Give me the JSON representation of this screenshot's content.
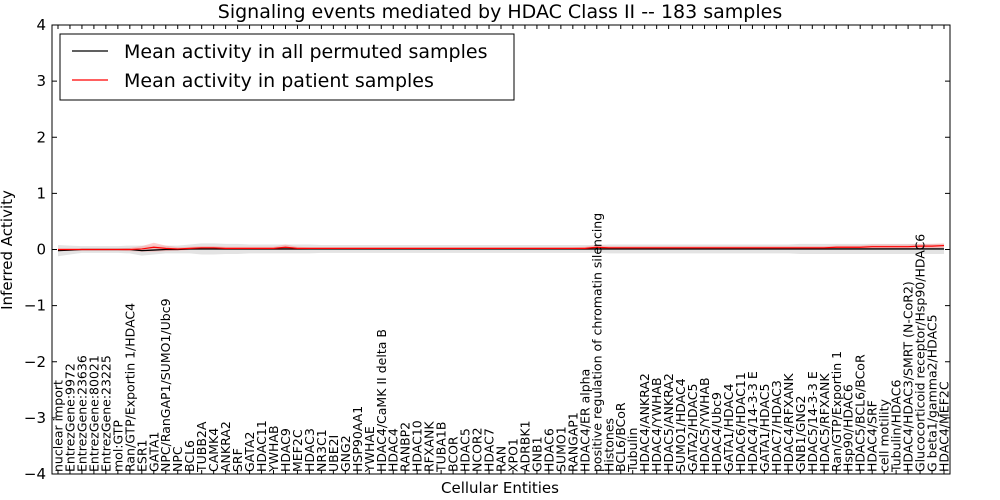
{
  "chart_data": {
    "type": "line",
    "title": "Signaling events mediated by HDAC Class II -- 183 samples",
    "xlabel": "Cellular Entities",
    "ylabel": "Inferred Activity",
    "ylim": [
      -4,
      4
    ],
    "yticks": [
      "−4",
      "−3",
      "−2",
      "−1",
      "0",
      "1",
      "2",
      "3",
      "4"
    ],
    "legend": {
      "position": "top-left",
      "entries": [
        {
          "label": "Mean activity in all permuted samples",
          "color": "#000000"
        },
        {
          "label": "Mean activity in patient samples",
          "color": "#ff0000"
        }
      ]
    },
    "categories": [
      "nuclear import",
      "EntrezGene:9972",
      "EntrezGene:23636",
      "EntrezGene:80021",
      "EntrezGene:23225",
      "mol:GTP",
      "Ran/GTP/Exportin 1/HDAC4",
      "ESR1",
      "GATA1",
      "NPC/RanGAP1/SUMO1/Ubc9",
      "NPC",
      "BCL6",
      "TUBB2A",
      "CAMK4",
      "ANKRA2",
      "SRF",
      "GATA2",
      "HDAC11",
      "YWHAB",
      "HDAC9",
      "MEF2C",
      "HDAC3",
      "NR3C1",
      "UBE2I",
      "GNG2",
      "HSP90AA1",
      "YWHAE",
      "HDAC4/CaMK II delta B",
      "HDAC4",
      "RANBP2",
      "HDAC10",
      "RFXANK",
      "TUBA1B",
      "BCOR",
      "HDAC5",
      "NCOR2",
      "HDAC7",
      "RAN",
      "XPO1",
      "ADRBK1",
      "GNB1",
      "HDAC6",
      "SUMO1",
      "RANGAP1",
      "HDAC4/ER alpha",
      "positive regulation of chromatin silencing",
      "Histones",
      "BCL6/BCoR",
      "Tubulin",
      "HDAC4/ANKRA2",
      "HDAC4/YWHAB",
      "HDAC5/ANKRA2",
      "SUMO1/HDAC4",
      "GATA2/HDAC5",
      "HDAC5/YWHAB",
      "HDAC4/Ubc9",
      "GATA1/HDAC4",
      "HDAC6/HDAC11",
      "HDAC4/14-3-3 E",
      "GATA1/HDAC5",
      "HDAC7/HDAC3",
      "HDAC4/RFXANK",
      "GNB1/GNG2",
      "HDAC5/14-3-3 E",
      "HDAC5/RFXANK",
      "Ran/GTP/Exportin 1",
      "Hsp90/HDAC6",
      "HDAC5/BCL6/BCoR",
      "HDAC4/SRF",
      "cell motility",
      "Tubulin/HDAC6",
      "HDAC4/HDAC3/SMRT (N-CoR2)",
      "Glucocorticoid receptor/Hsp90/HDAC6",
      "G beta1/gamma2/HDAC5",
      "HDAC4/MEF2C"
    ],
    "series": [
      {
        "name": "Mean activity in all permuted samples",
        "color": "#000000",
        "values": [
          -0.02,
          -0.01,
          0.0,
          0.0,
          0.0,
          0.0,
          0.0,
          -0.02,
          -0.01,
          0.0,
          0.0,
          0.01,
          0.01,
          0.01,
          0.01,
          0.01,
          0.01,
          0.01,
          0.01,
          0.01,
          0.01,
          0.01,
          0.01,
          0.01,
          0.01,
          0.01,
          0.01,
          0.01,
          0.01,
          0.01,
          0.01,
          0.01,
          0.01,
          0.01,
          0.01,
          0.01,
          0.01,
          0.01,
          0.01,
          0.01,
          0.01,
          0.01,
          0.01,
          0.01,
          0.01,
          0.01,
          0.01,
          0.01,
          0.01,
          0.01,
          0.01,
          0.01,
          0.01,
          0.01,
          0.01,
          0.01,
          0.01,
          0.01,
          0.01,
          0.01,
          0.01,
          0.01,
          0.01,
          0.01,
          0.01,
          0.01,
          0.01,
          0.01,
          0.01,
          0.01,
          0.01,
          0.01,
          0.01,
          0.01,
          0.01
        ],
        "band": [
          0.1,
          0.08,
          0.06,
          0.06,
          0.06,
          0.06,
          0.07,
          0.09,
          0.08,
          0.07,
          0.07,
          0.08,
          0.1,
          0.1,
          0.09,
          0.09,
          0.08,
          0.08,
          0.08,
          0.08,
          0.08,
          0.08,
          0.07,
          0.07,
          0.07,
          0.07,
          0.07,
          0.07,
          0.07,
          0.07,
          0.07,
          0.07,
          0.07,
          0.07,
          0.07,
          0.07,
          0.07,
          0.07,
          0.07,
          0.07,
          0.07,
          0.07,
          0.07,
          0.07,
          0.07,
          0.07,
          0.08,
          0.08,
          0.08,
          0.08,
          0.08,
          0.08,
          0.08,
          0.08,
          0.08,
          0.08,
          0.08,
          0.08,
          0.08,
          0.08,
          0.08,
          0.08,
          0.09,
          0.09,
          0.09,
          0.09,
          0.09,
          0.09,
          0.09,
          0.09,
          0.09,
          0.09,
          0.09,
          0.09,
          0.09
        ]
      },
      {
        "name": "Mean activity in patient samples",
        "color": "#ff0000",
        "values": [
          0.0,
          0.0,
          0.0,
          0.0,
          0.0,
          0.0,
          0.0,
          0.01,
          0.04,
          0.02,
          0.01,
          0.02,
          0.03,
          0.03,
          0.02,
          0.02,
          0.02,
          0.02,
          0.02,
          0.04,
          0.02,
          0.02,
          0.02,
          0.02,
          0.02,
          0.02,
          0.02,
          0.02,
          0.02,
          0.02,
          0.02,
          0.02,
          0.02,
          0.02,
          0.02,
          0.02,
          0.02,
          0.02,
          0.02,
          0.02,
          0.02,
          0.02,
          0.02,
          0.02,
          0.02,
          0.04,
          0.03,
          0.03,
          0.03,
          0.03,
          0.03,
          0.03,
          0.03,
          0.03,
          0.03,
          0.03,
          0.03,
          0.03,
          0.03,
          0.03,
          0.03,
          0.03,
          0.03,
          0.03,
          0.03,
          0.04,
          0.04,
          0.04,
          0.05,
          0.05,
          0.05,
          0.05,
          0.06,
          0.06,
          0.07
        ],
        "band": [
          0.02,
          0.02,
          0.02,
          0.02,
          0.02,
          0.02,
          0.03,
          0.05,
          0.08,
          0.05,
          0.03,
          0.03,
          0.03,
          0.03,
          0.03,
          0.03,
          0.03,
          0.03,
          0.03,
          0.05,
          0.03,
          0.02,
          0.02,
          0.02,
          0.02,
          0.02,
          0.02,
          0.02,
          0.02,
          0.02,
          0.02,
          0.02,
          0.02,
          0.02,
          0.02,
          0.02,
          0.02,
          0.02,
          0.02,
          0.02,
          0.02,
          0.02,
          0.02,
          0.02,
          0.03,
          0.04,
          0.03,
          0.03,
          0.03,
          0.03,
          0.03,
          0.03,
          0.03,
          0.03,
          0.03,
          0.03,
          0.03,
          0.03,
          0.03,
          0.03,
          0.03,
          0.03,
          0.03,
          0.03,
          0.03,
          0.03,
          0.03,
          0.03,
          0.04,
          0.04,
          0.04,
          0.04,
          0.04,
          0.04,
          0.04
        ]
      }
    ]
  }
}
